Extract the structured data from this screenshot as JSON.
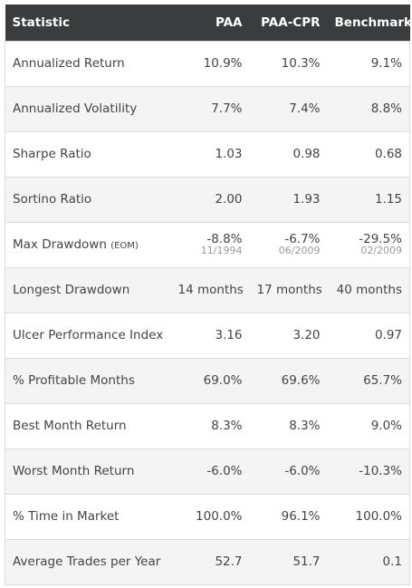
{
  "table": {
    "headers": [
      "Statistic",
      "PAA",
      "PAA-CPR",
      "Benchmark"
    ],
    "rows": [
      {
        "label": "Annualized Return",
        "values": [
          "10.9%",
          "10.3%",
          "9.1%"
        ]
      },
      {
        "label": "Annualized Volatility",
        "values": [
          "7.7%",
          "7.4%",
          "8.8%"
        ]
      },
      {
        "label": "Sharpe Ratio",
        "values": [
          "1.03",
          "0.98",
          "0.68"
        ]
      },
      {
        "label": "Sortino Ratio",
        "values": [
          "2.00",
          "1.93",
          "1.15"
        ]
      },
      {
        "label": "Max Drawdown",
        "label_suffix": "(EOM)",
        "values": [
          "-8.8%",
          "-6.7%",
          "-29.5%"
        ],
        "dates": [
          "11/1994",
          "06/2009",
          "02/2009"
        ]
      },
      {
        "label": "Longest Drawdown",
        "values": [
          "14 months",
          "17 months",
          "40 months"
        ]
      },
      {
        "label": "Ulcer Performance Index",
        "values": [
          "3.16",
          "3.20",
          "0.97"
        ]
      },
      {
        "label": "% Profitable Months",
        "values": [
          "69.0%",
          "69.6%",
          "65.7%"
        ]
      },
      {
        "label": "Best Month Return",
        "values": [
          "8.3%",
          "8.3%",
          "9.0%"
        ]
      },
      {
        "label": "Worst Month Return",
        "values": [
          "-6.0%",
          "-6.0%",
          "-10.3%"
        ]
      },
      {
        "label": "% Time in Market",
        "values": [
          "100.0%",
          "96.1%",
          "100.0%"
        ]
      },
      {
        "label": "Average Trades per Year",
        "values": [
          "52.7",
          "51.7",
          "0.1"
        ]
      }
    ]
  },
  "colors": {
    "header_bg": "#3b3c3e",
    "header_text": "#ffffff",
    "body_text": "#444444",
    "sub_text": "#9a9a9a",
    "row_alt": "#f4f4f4",
    "border": "#dcdcdc"
  }
}
